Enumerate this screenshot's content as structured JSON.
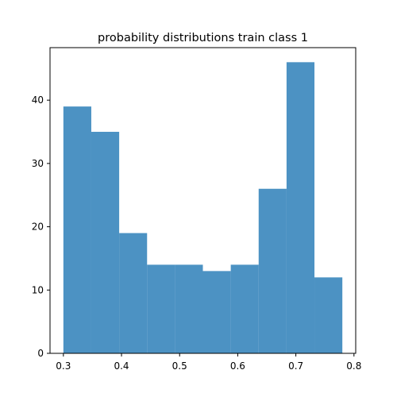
{
  "chart_data": {
    "type": "bar",
    "title": "probability distributions train class 1",
    "xlabel": "",
    "ylabel": "",
    "bin_edges": [
      0.3,
      0.348,
      0.396,
      0.444,
      0.492,
      0.54,
      0.588,
      0.636,
      0.684,
      0.732,
      0.78
    ],
    "values": [
      39,
      35,
      19,
      14,
      14,
      13,
      14,
      26,
      46,
      12
    ],
    "xlim": [
      0.277,
      0.803
    ],
    "ylim": [
      0,
      48.3
    ],
    "xticks": [
      0.3,
      0.4,
      0.5,
      0.6,
      0.7,
      0.8
    ],
    "xtick_labels": [
      "0.3",
      "0.4",
      "0.5",
      "0.6",
      "0.7",
      "0.8"
    ],
    "yticks": [
      0,
      10,
      20,
      30,
      40
    ],
    "ytick_labels": [
      "0",
      "10",
      "20",
      "30",
      "40"
    ],
    "bar_color": "#1f77b4",
    "grid": false,
    "legend": "none"
  }
}
